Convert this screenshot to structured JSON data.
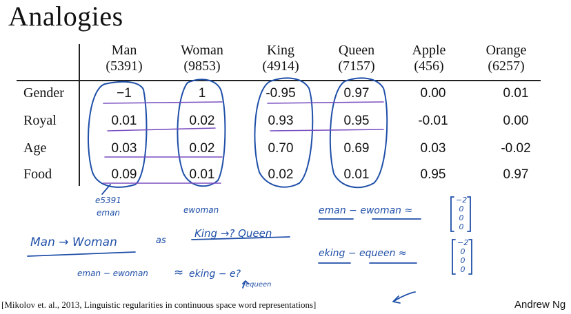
{
  "title": "Analogies",
  "table": {
    "columns": [
      {
        "word": "Man",
        "index": "(5391)"
      },
      {
        "word": "Woman",
        "index": "(9853)"
      },
      {
        "word": "King",
        "index": "(4914)"
      },
      {
        "word": "Queen",
        "index": "(7157)"
      },
      {
        "word": "Apple",
        "index": "(456)"
      },
      {
        "word": "Orange",
        "index": "(6257)"
      }
    ],
    "rows": [
      {
        "label": "Gender",
        "values": [
          "−1",
          "1",
          "-0.95",
          "0.97",
          "0.00",
          "0.01"
        ]
      },
      {
        "label": "Royal",
        "values": [
          "0.01",
          "0.02",
          "0.93",
          "0.95",
          "-0.01",
          "0.00"
        ]
      },
      {
        "label": "Age",
        "values": [
          "0.03",
          "0.02",
          "0.70",
          "0.69",
          "0.03",
          "-0.02"
        ]
      },
      {
        "label": "Food",
        "values": [
          "0.09",
          "0.01",
          "0.02",
          "0.01",
          "0.95",
          "0.97"
        ]
      }
    ]
  },
  "handwriting": {
    "e5391": "e5391",
    "eman": "eman",
    "ewoman": "ewoman",
    "man_woman": "Man → Woman",
    "as": "as",
    "king_queen": "King →? Queen",
    "diff1": "eman − ewoman ≈",
    "diff2": "eking − equeen ≈",
    "eq_left": "eman − ewoman",
    "approx": "≈",
    "eq_right": "eking − e?",
    "queen_note": "equeen",
    "vec1": [
      "−2",
      "0",
      "0",
      "0"
    ],
    "vec2": [
      "−2",
      "0",
      "0",
      "0"
    ]
  },
  "citation": "[Mikolov et. al., 2013, Linguistic regularities in continuous space word representations]",
  "author": "Andrew Ng",
  "colors": {
    "ink": "#1f4fa8",
    "underline": "#7a4fc0",
    "text": "#111111"
  }
}
